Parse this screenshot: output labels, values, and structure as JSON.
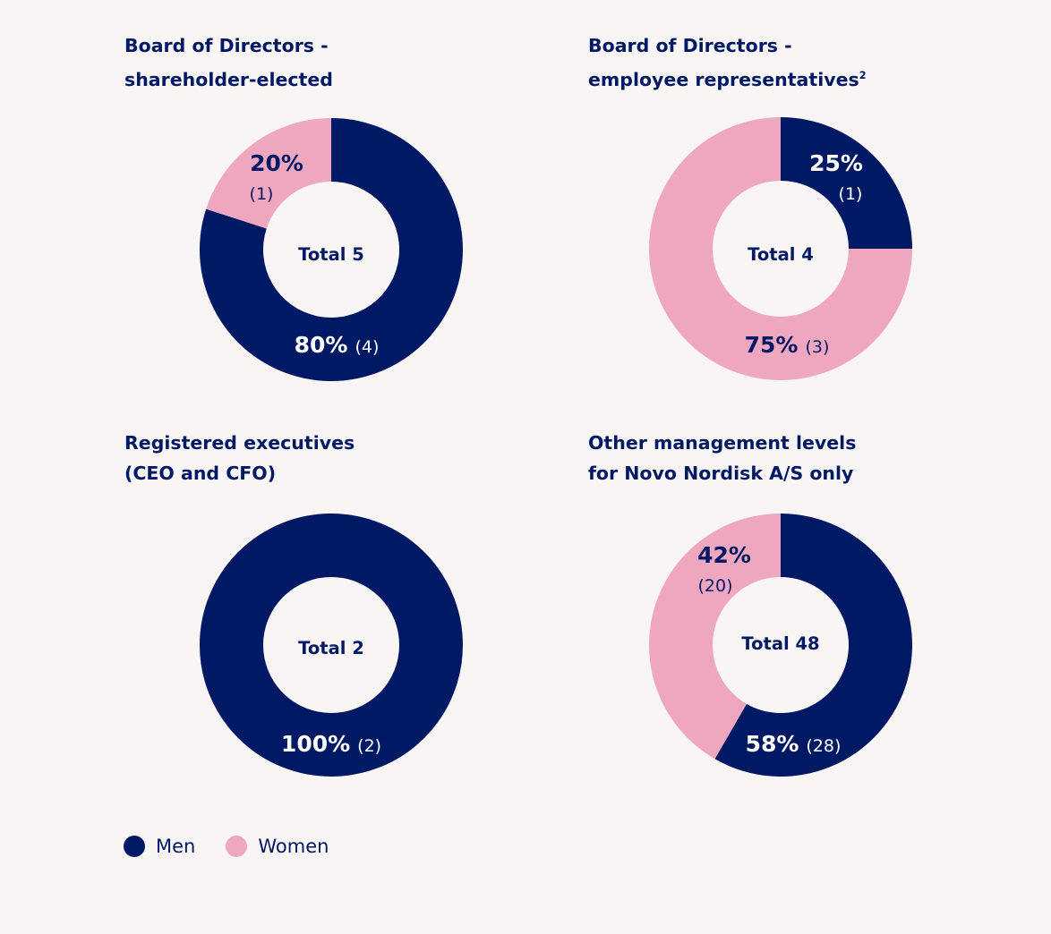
{
  "colors": {
    "men": "#001965",
    "women": "#efa7bf",
    "background": "#f8f5f4"
  },
  "legend": {
    "men_label": "Men",
    "women_label": "Women"
  },
  "chart_data": [
    {
      "type": "pie",
      "title_line1": "Board of Directors -",
      "title_line2": "shareholder-elected",
      "title_sup": "",
      "center_label": "Total 5",
      "total": 5,
      "slices": [
        {
          "label": "Men",
          "count": 4,
          "percent": 80,
          "percent_label": "80%",
          "count_label": "(4)"
        },
        {
          "label": "Women",
          "count": 1,
          "percent": 20,
          "percent_label": "20%",
          "count_label": "(1)"
        }
      ]
    },
    {
      "type": "pie",
      "title_line1": "Board of Directors -",
      "title_line2": "employee representatives",
      "title_sup": "2",
      "center_label": "Total 4",
      "total": 4,
      "slices": [
        {
          "label": "Men",
          "count": 1,
          "percent": 25,
          "percent_label": "25%",
          "count_label": "(1)"
        },
        {
          "label": "Women",
          "count": 3,
          "percent": 75,
          "percent_label": "75%",
          "count_label": "(3)"
        }
      ]
    },
    {
      "type": "pie",
      "title_line1": "Registered executives",
      "title_line2": "(CEO and CFO)",
      "title_sup": "",
      "center_label": "Total 2",
      "total": 2,
      "slices": [
        {
          "label": "Men",
          "count": 2,
          "percent": 100,
          "percent_label": "100%",
          "count_label": "(2)"
        }
      ]
    },
    {
      "type": "pie",
      "title_line1": "Other management levels",
      "title_line2": "for Novo Nordisk A/S only",
      "title_sup": "",
      "center_label": "Total 48",
      "total": 48,
      "slices": [
        {
          "label": "Men",
          "count": 28,
          "percent": 58,
          "percent_label": "58%",
          "count_label": "(28)"
        },
        {
          "label": "Women",
          "count": 20,
          "percent": 42,
          "percent_label": "42%",
          "count_label": "(20)"
        }
      ]
    }
  ]
}
